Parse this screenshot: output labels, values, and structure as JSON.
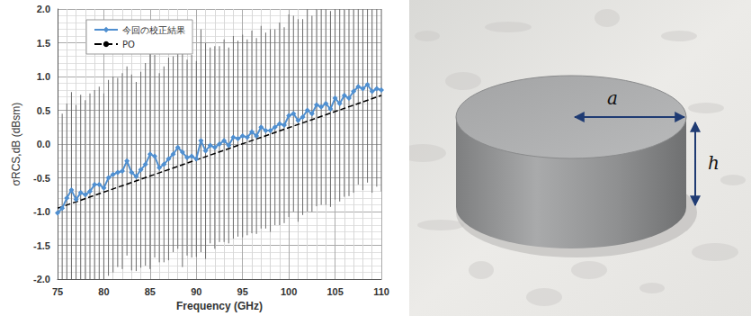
{
  "chart_data": {
    "type": "line",
    "x_label": "Frequency (GHz)",
    "y_label": "σRCS,dB (dBsm)",
    "xlim": [
      75,
      110
    ],
    "xticks": [
      75,
      80,
      85,
      90,
      95,
      100,
      105,
      110
    ],
    "ylim": [
      -2.0,
      2.0
    ],
    "yticks": [
      {
        "value": -2.0,
        "label": "-2.0"
      },
      {
        "value": -1.5,
        "label": "-1.5"
      },
      {
        "value": -1.0,
        "label": "-1.0"
      },
      {
        "value": -0.5,
        "label": "-0.5"
      },
      {
        "value": 0.0,
        "label": "0.0"
      },
      {
        "value": 0.5,
        "label": "0.5"
      },
      {
        "value": 1.0,
        "label": "1.0"
      },
      {
        "value": 1.5,
        "label": "1.5"
      },
      {
        "value": 2.0,
        "label": "2.0"
      }
    ],
    "grid": true,
    "legend": "upper left",
    "series": [
      {
        "name": "今回の校正結果",
        "color": "#4f8fd0",
        "marker": "diamond",
        "line_style": "solid",
        "x": [
          75,
          75.5,
          76,
          76.5,
          77,
          77.5,
          78,
          78.5,
          79,
          79.5,
          80,
          80.5,
          81,
          81.5,
          82,
          82.5,
          83,
          83.5,
          84,
          84.5,
          85,
          85.5,
          86,
          86.5,
          87,
          87.5,
          88,
          88.5,
          89,
          89.5,
          90,
          90.5,
          91,
          91.5,
          92,
          92.5,
          93,
          93.5,
          94,
          94.5,
          95,
          95.5,
          96,
          96.5,
          97,
          97.5,
          98,
          98.5,
          99,
          99.5,
          100,
          100.5,
          101,
          101.5,
          102,
          102.5,
          103,
          103.5,
          104,
          104.5,
          105,
          105.5,
          106,
          106.5,
          107,
          107.5,
          108,
          108.5,
          109,
          109.5,
          110
        ],
        "values": [
          -1.02,
          -0.95,
          -0.8,
          -0.68,
          -0.82,
          -0.72,
          -0.75,
          -0.7,
          -0.6,
          -0.6,
          -0.65,
          -0.5,
          -0.45,
          -0.42,
          -0.4,
          -0.25,
          -0.42,
          -0.48,
          -0.38,
          -0.3,
          -0.15,
          -0.18,
          -0.35,
          -0.3,
          -0.22,
          -0.15,
          -0.05,
          -0.12,
          -0.2,
          -0.18,
          -0.22,
          0.05,
          -0.1,
          -0.02,
          -0.05,
          0.0,
          0.05,
          -0.02,
          0.1,
          0.08,
          0.12,
          0.1,
          0.18,
          0.12,
          0.25,
          0.2,
          0.2,
          0.25,
          0.3,
          0.28,
          0.42,
          0.45,
          0.35,
          0.4,
          0.5,
          0.45,
          0.58,
          0.55,
          0.6,
          0.52,
          0.68,
          0.6,
          0.72,
          0.68,
          0.78,
          0.85,
          0.82,
          0.88,
          0.78,
          0.82,
          0.8
        ],
        "errors": [
          1.45,
          1.4,
          1.4,
          1.45,
          1.4,
          1.45,
          1.4,
          1.45,
          1.4,
          1.45,
          1.4,
          1.45,
          1.45,
          1.4,
          1.45,
          1.4,
          1.45,
          1.4,
          1.45,
          1.5,
          1.7,
          1.5,
          1.4,
          1.45,
          1.5,
          1.45,
          1.5,
          1.7,
          1.45,
          1.5,
          1.45,
          1.65,
          1.6,
          1.45,
          1.5,
          1.45,
          1.5,
          1.45,
          1.5,
          1.45,
          1.5,
          1.45,
          1.5,
          1.45,
          1.5,
          1.45,
          1.5,
          1.45,
          1.5,
          1.45,
          1.5,
          1.45,
          1.5,
          1.45,
          1.5,
          1.45,
          1.5,
          1.45,
          1.5,
          1.45,
          1.5,
          1.45,
          1.5,
          1.45,
          1.5,
          1.45,
          1.5,
          1.45,
          1.5,
          1.45,
          1.5
        ]
      },
      {
        "name": "PO",
        "color": "#000000",
        "line_style": "dashed",
        "x": [
          75,
          110
        ],
        "values": [
          -0.95,
          0.72
        ]
      }
    ]
  },
  "photo": {
    "labels": {
      "radius": "a",
      "height": "h"
    }
  }
}
